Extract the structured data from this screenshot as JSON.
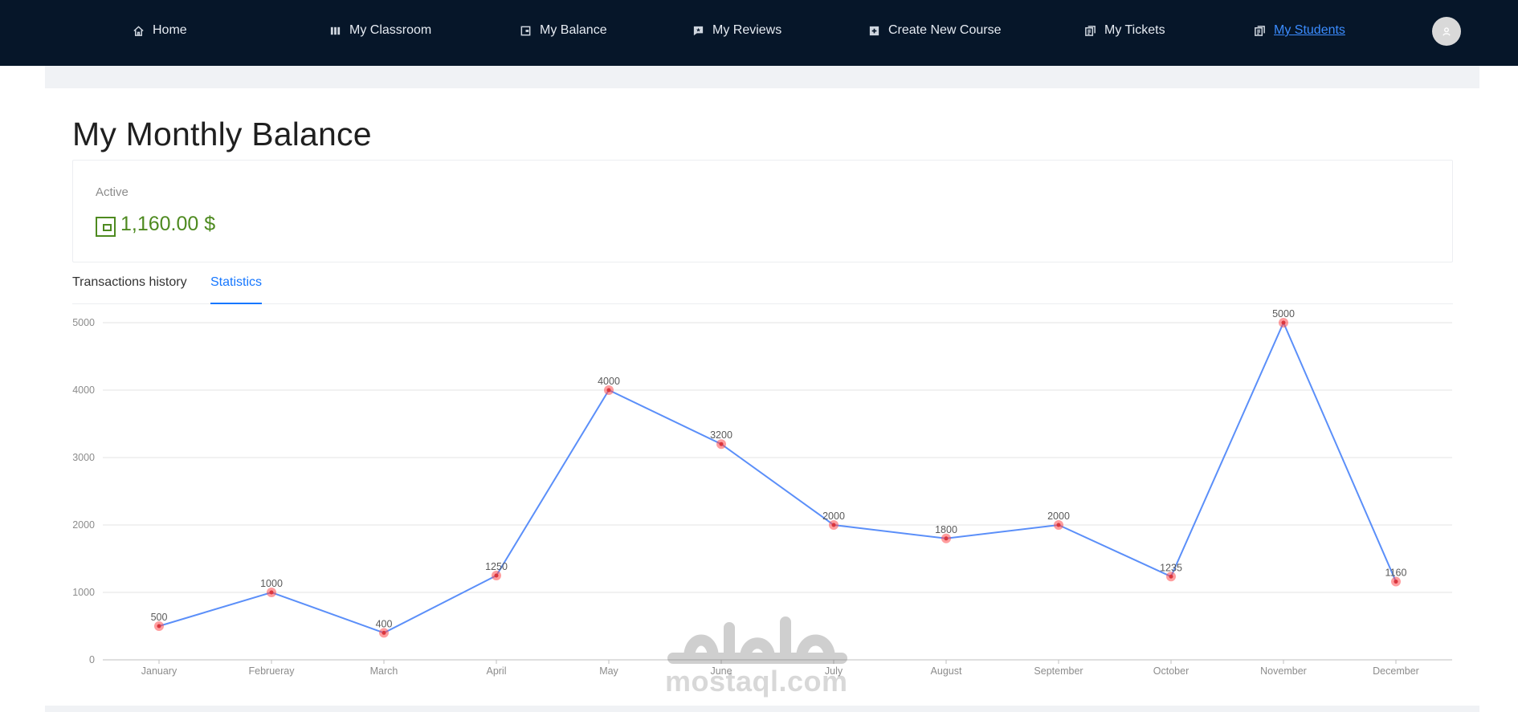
{
  "nav": {
    "items": [
      {
        "label": "Home",
        "icon": "home-icon"
      },
      {
        "label": "My Classroom",
        "icon": "columns-icon"
      },
      {
        "label": "My Balance",
        "icon": "wallet-icon"
      },
      {
        "label": "My Reviews",
        "icon": "comment-star-icon"
      },
      {
        "label": "Create New Course",
        "icon": "plus-square-icon"
      },
      {
        "label": "My Tickets",
        "icon": "ticket-icon"
      },
      {
        "label": "My Students",
        "icon": "students-icon",
        "active": true
      }
    ],
    "avatar_icon": "user-icon"
  },
  "page": {
    "title": "My Monthly Balance"
  },
  "balance": {
    "label": "Active",
    "amount": "1,160.00 $",
    "color": "#4e8a20"
  },
  "tabs": [
    {
      "label": "Transactions history",
      "active": false
    },
    {
      "label": "Statistics",
      "active": true
    }
  ],
  "colors": {
    "nav_bg": "#061629",
    "accent": "#1677ff",
    "line": "#5b8ff9",
    "point": "#ff4d4f"
  },
  "chart_data": {
    "type": "line",
    "categories": [
      "January",
      "Februeray",
      "March",
      "April",
      "May",
      "June",
      "July",
      "August",
      "September",
      "October",
      "November",
      "December"
    ],
    "series": [
      {
        "values": [
          500,
          1000,
          400,
          1250,
          4000,
          3200,
          2000,
          1800,
          2000,
          1235,
          5000,
          1160
        ]
      }
    ],
    "yticks": [
      0,
      1000,
      2000,
      3000,
      4000,
      5000
    ],
    "ylim": [
      0,
      5000
    ],
    "grid": true,
    "data_labels": true,
    "legend": "none"
  },
  "watermark": {
    "text": "mostaql.com"
  }
}
